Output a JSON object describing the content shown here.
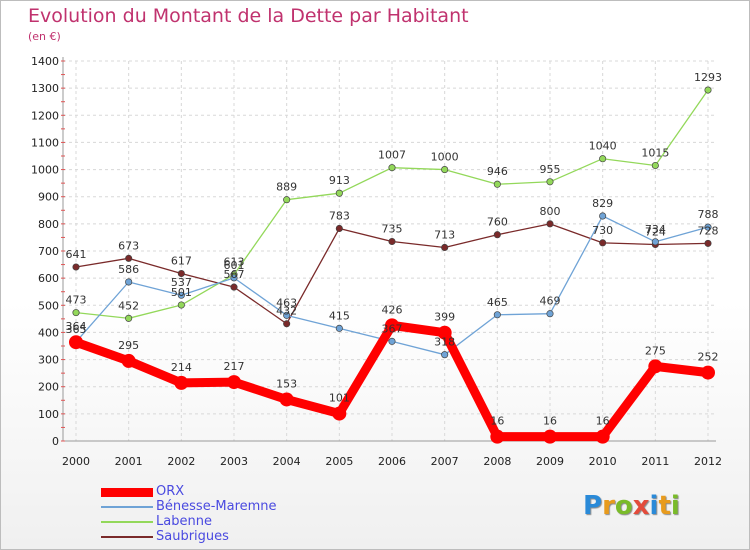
{
  "title": "Evolution du Montant de la Dette par Habitant",
  "subtitle": "(en €)",
  "logo": {
    "text": "Proxiti",
    "colors": [
      "#2a8ad8",
      "#e89b1d",
      "#7abb2a",
      "#e34b3b",
      "#2a8ad8",
      "#e89b1d",
      "#7abb2a"
    ]
  },
  "chart_data": {
    "type": "line",
    "x": [
      "2000",
      "2001",
      "2002",
      "2003",
      "2004",
      "2005",
      "2006",
      "2007",
      "2008",
      "2009",
      "2010",
      "2011",
      "2012"
    ],
    "ylim": [
      0,
      1400
    ],
    "yticks": [
      "0",
      "100",
      "200",
      "300",
      "400",
      "500",
      "600",
      "700",
      "800",
      "900",
      "1000",
      "1100",
      "1200",
      "1300",
      "1400"
    ],
    "grid": true,
    "legend_position": "bottom-left",
    "series": [
      {
        "name": "ORX",
        "color": "#ff0000",
        "values": [
          364,
          295,
          214,
          217,
          153,
          101,
          426,
          399,
          16,
          16,
          16,
          275,
          252
        ],
        "labels": [
          "364",
          "295",
          "214",
          "217",
          "153",
          "101",
          "426",
          "399",
          "16",
          "16",
          "16",
          "275",
          "252"
        ]
      },
      {
        "name": "Bénesse-Maremne",
        "color": "#6fa3d6",
        "values": [
          365,
          586,
          537,
          601,
          463,
          415,
          367,
          318,
          465,
          469,
          829,
          734,
          788
        ],
        "labels": [
          "365",
          "586",
          "537",
          "601",
          "463",
          "415",
          "367",
          "318",
          "465",
          "469",
          "829",
          "734",
          "788"
        ]
      },
      {
        "name": "Labenne",
        "color": "#93d85a",
        "values": [
          473,
          452,
          501,
          613,
          889,
          913,
          1007,
          1000,
          946,
          955,
          1040,
          1015,
          1293
        ],
        "labels": [
          "473",
          "452",
          "501",
          "613",
          "889",
          "913",
          "1007",
          "1000",
          "946",
          "955",
          "1040",
          "1015",
          "1293"
        ]
      },
      {
        "name": "Saubrigues",
        "color": "#7a2a2a",
        "values": [
          641,
          673,
          617,
          567,
          432,
          783,
          735,
          713,
          760,
          800,
          730,
          724,
          728
        ],
        "labels": [
          "641",
          "673",
          "617",
          "567",
          "432",
          "783",
          "735",
          "713",
          "760",
          "800",
          "730",
          "724",
          "728"
        ]
      }
    ]
  }
}
